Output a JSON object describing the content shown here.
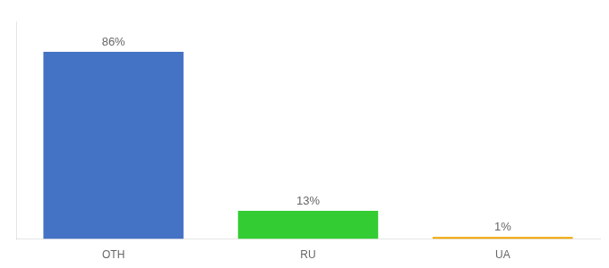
{
  "chart_data": {
    "type": "bar",
    "categories": [
      "OTH",
      "RU",
      "UA"
    ],
    "values": [
      86,
      13,
      1
    ],
    "value_labels": [
      "86%",
      "13%",
      "1%"
    ],
    "colors": [
      "#4472c4",
      "#33cc33",
      "#f0a500"
    ],
    "ylim": [
      0,
      100
    ],
    "grid": false,
    "tick_labels": "x",
    "data_labels": true
  }
}
